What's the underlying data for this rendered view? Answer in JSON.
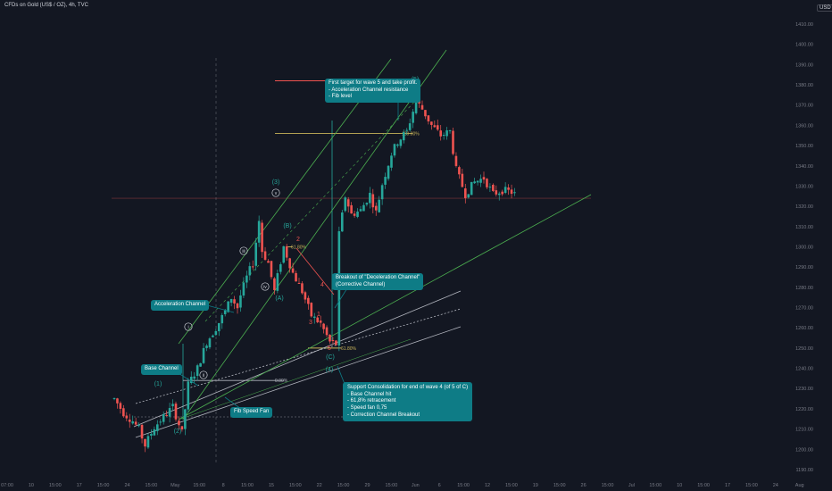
{
  "header": {
    "symbol_title": "CFDs on Gold (US$ / OZ), 4h, TVC",
    "currency": "USD"
  },
  "colors": {
    "background": "#131722",
    "bull": "#26a69a",
    "bear": "#ef5350",
    "fib_green": "#4caf50",
    "channel": "#b2b5be",
    "callout": "#0e7c86",
    "fib_gold": "#c8b45a",
    "fib_red": "#ef5350",
    "wave": "#26a69a"
  },
  "chart_data": {
    "type": "candlestick",
    "title": "",
    "y_axis": {
      "min": 1190,
      "max": 1420,
      "ticks": [
        "1410.00",
        "1400.00",
        "1390.00",
        "1380.00",
        "1370.00",
        "1360.00",
        "1350.00",
        "1340.00",
        "1330.00",
        "1320.00",
        "1310.00",
        "1300.00",
        "1290.00",
        "1280.00",
        "1270.00",
        "1260.00",
        "1250.00",
        "1240.00",
        "1230.00",
        "1220.00",
        "1210.00",
        "1200.00",
        "1190.00"
      ]
    },
    "x_axis": {
      "ticks": [
        "07:00",
        "10",
        "15:00",
        "17",
        "15:00",
        "24",
        "15:00",
        "May",
        "15:00",
        "8",
        "15:00",
        "15",
        "15:00",
        "22",
        "15:00",
        "29",
        "15:00",
        "Jun",
        "6",
        "15:00",
        "12",
        "15:00",
        "19",
        "15:00",
        "26",
        "15:00",
        "Jul",
        "15:00",
        "10",
        "15:00",
        "17",
        "15:00",
        "24",
        "Aug"
      ]
    },
    "price_path": [
      [
        0,
        1225
      ],
      [
        3,
        1218
      ],
      [
        6,
        1214
      ],
      [
        8,
        1210
      ],
      [
        10,
        1202
      ],
      [
        13,
        1211
      ],
      [
        16,
        1216
      ],
      [
        19,
        1221
      ],
      [
        22,
        1208
      ],
      [
        24,
        1232
      ],
      [
        27,
        1240
      ],
      [
        30,
        1253
      ],
      [
        33,
        1260
      ],
      [
        36,
        1268
      ],
      [
        38,
        1275
      ],
      [
        40,
        1270
      ],
      [
        41,
        1276
      ],
      [
        43,
        1285
      ],
      [
        45,
        1292
      ],
      [
        47,
        1313
      ],
      [
        48,
        1298
      ],
      [
        50,
        1292
      ],
      [
        52,
        1278
      ],
      [
        55,
        1300
      ],
      [
        58,
        1287
      ],
      [
        61,
        1278
      ],
      [
        64,
        1266
      ],
      [
        67,
        1262
      ],
      [
        70,
        1253
      ],
      [
        72,
        1252
      ],
      [
        73,
        1306
      ],
      [
        75,
        1325
      ],
      [
        77,
        1316
      ],
      [
        80,
        1318
      ],
      [
        83,
        1326
      ],
      [
        85,
        1317
      ],
      [
        87,
        1331
      ],
      [
        90,
        1346
      ],
      [
        92,
        1352
      ],
      [
        95,
        1357
      ],
      [
        98,
        1372
      ],
      [
        100,
        1368
      ],
      [
        103,
        1360
      ],
      [
        106,
        1355
      ],
      [
        109,
        1357
      ],
      [
        111,
        1338
      ],
      [
        114,
        1326
      ],
      [
        117,
        1332
      ],
      [
        120,
        1334
      ],
      [
        123,
        1326
      ],
      [
        126,
        1328
      ],
      [
        129,
        1327
      ],
      [
        130,
        1326
      ]
    ],
    "wave_labels": [
      "(1)",
      "(2)",
      "(3)",
      "(4)",
      "(5)",
      "(A)",
      "(B)",
      "(C)",
      "i",
      "ii",
      "iii",
      "iv",
      "v",
      "1",
      "2",
      "3",
      "4",
      "5"
    ],
    "levels": [
      {
        "label": "161.80%",
        "price": 1382
      },
      {
        "label": "100.00%",
        "price": 1356
      },
      {
        "label": "61.80%",
        "price": 1250
      },
      {
        "label": "61.80%",
        "price": 1300
      },
      {
        "label": "0.00%",
        "price": 1234
      }
    ],
    "series": [
      {
        "name": "Base Channel"
      },
      {
        "name": "Acceleration Channel"
      },
      {
        "name": "Fib Speed Fan"
      }
    ]
  },
  "callouts": {
    "first_target": [
      "First target for wave 5 and take profit.",
      "- Acceleration Channel resistance",
      "- Fib level"
    ],
    "breakout": [
      "Breakout of \"Deceleration Channel\"",
      "(Corrective Channel)"
    ],
    "support": [
      "Support Consolidation for end of wave 4 (of 5 of C)",
      "- Base Channel hit",
      "- 61,8% retracement",
      "- Speed fan 0,75",
      "- Correction Channel Breakout"
    ],
    "acceleration_channel": "Acceleration Channel",
    "base_channel": "Base Channel",
    "fib_speed_fan": "Fib Speed Fan"
  }
}
